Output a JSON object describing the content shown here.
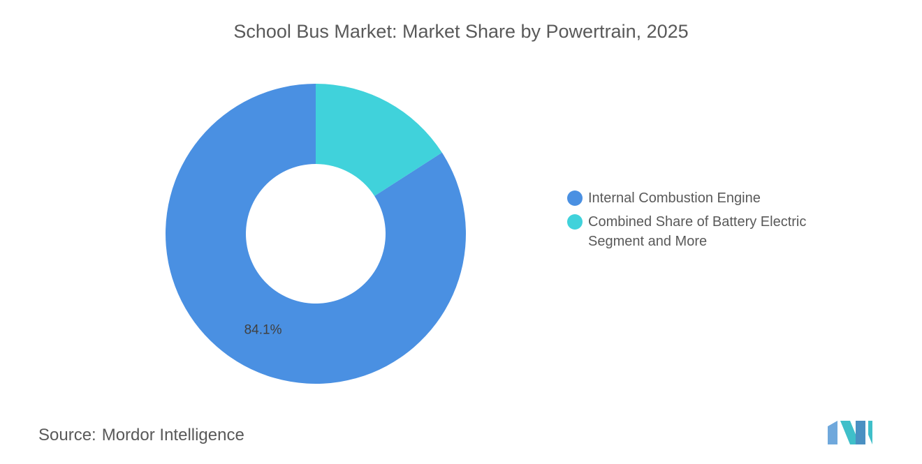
{
  "chart_data": {
    "type": "donut",
    "title": "School Bus Market: Market Share by Powertrain, 2025",
    "categories": [
      "Internal Combustion Engine",
      "Combined Share of Battery Electric Segment and More"
    ],
    "values": [
      84.1,
      15.9
    ],
    "value_labels": [
      "84.1%",
      null
    ],
    "colors": [
      "#4a90e2",
      "#40d2db"
    ]
  },
  "source": {
    "label": "Source:",
    "text": "Mordor Intelligence"
  }
}
